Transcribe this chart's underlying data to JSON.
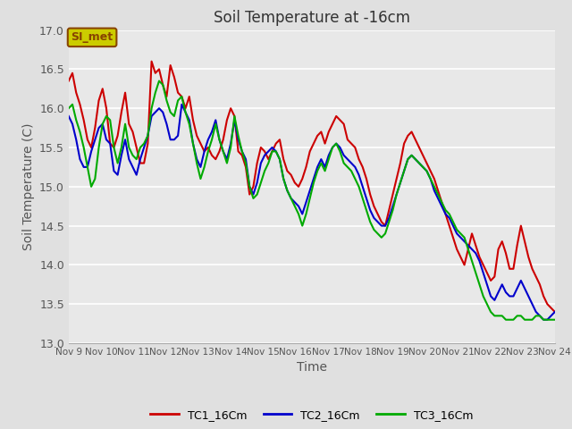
{
  "title": "Soil Temperature at -16cm",
  "xlabel": "Time",
  "ylabel": "Soil Temperature (C)",
  "ylim": [
    13.0,
    17.0
  ],
  "yticks": [
    13.0,
    13.5,
    14.0,
    14.5,
    15.0,
    15.5,
    16.0,
    16.5,
    17.0
  ],
  "xtick_labels": [
    "Nov 9",
    "Nov 10",
    "Nov 11",
    "Nov 12",
    "Nov 13",
    "Nov 14",
    "Nov 15",
    "Nov 16",
    "Nov 17",
    "Nov 18",
    "Nov 19",
    "Nov 20",
    "Nov 21",
    "Nov 22",
    "Nov 23",
    "Nov 24"
  ],
  "bg_color": "#e8e8e8",
  "fig_bg_color": "#e0e0e0",
  "grid_color": "#ffffff",
  "line_colors": [
    "#cc0000",
    "#0000cc",
    "#00aa00"
  ],
  "line_width": 1.5,
  "legend_labels": [
    "TC1_16Cm",
    "TC2_16Cm",
    "TC3_16Cm"
  ],
  "annotation_text": "SI_met",
  "annotation_bg": "#cccc00",
  "annotation_border": "#884400",
  "tc1": [
    16.35,
    16.45,
    16.2,
    16.05,
    15.85,
    15.6,
    15.5,
    15.75,
    16.1,
    16.25,
    16.0,
    15.55,
    15.5,
    15.65,
    15.95,
    16.2,
    15.8,
    15.7,
    15.5,
    15.3,
    15.3,
    15.55,
    16.6,
    16.45,
    16.5,
    16.3,
    16.15,
    16.55,
    16.4,
    16.2,
    16.15,
    16.0,
    16.15,
    15.85,
    15.65,
    15.55,
    15.45,
    15.5,
    15.4,
    15.35,
    15.45,
    15.6,
    15.85,
    16.0,
    15.9,
    15.45,
    15.4,
    15.25,
    14.9,
    15.0,
    15.3,
    15.5,
    15.45,
    15.35,
    15.45,
    15.55,
    15.6,
    15.35,
    15.2,
    15.15,
    15.05,
    15.0,
    15.1,
    15.25,
    15.45,
    15.55,
    15.65,
    15.7,
    15.55,
    15.7,
    15.8,
    15.9,
    15.85,
    15.8,
    15.6,
    15.55,
    15.5,
    15.35,
    15.25,
    15.1,
    14.9,
    14.75,
    14.65,
    14.55,
    14.5,
    14.7,
    14.9,
    15.1,
    15.3,
    15.55,
    15.65,
    15.7,
    15.6,
    15.5,
    15.4,
    15.3,
    15.2,
    15.1,
    14.95,
    14.8,
    14.65,
    14.5,
    14.35,
    14.2,
    14.1,
    14.0,
    14.2,
    14.4,
    14.25,
    14.1,
    14.0,
    13.9,
    13.8,
    13.85,
    14.2,
    14.3,
    14.15,
    13.95,
    13.95,
    14.25,
    14.5,
    14.3,
    14.1,
    13.95,
    13.85,
    13.75,
    13.6,
    13.5,
    13.45,
    13.4
  ],
  "tc2": [
    15.9,
    15.8,
    15.6,
    15.35,
    15.25,
    15.25,
    15.45,
    15.6,
    15.75,
    15.8,
    15.6,
    15.55,
    15.2,
    15.15,
    15.4,
    15.6,
    15.35,
    15.25,
    15.15,
    15.35,
    15.5,
    15.65,
    15.9,
    15.95,
    16.0,
    15.95,
    15.8,
    15.6,
    15.6,
    15.65,
    16.05,
    15.95,
    15.85,
    15.55,
    15.35,
    15.25,
    15.45,
    15.6,
    15.7,
    15.85,
    15.6,
    15.45,
    15.35,
    15.55,
    15.85,
    15.6,
    15.45,
    15.35,
    15.0,
    14.9,
    15.05,
    15.3,
    15.4,
    15.45,
    15.5,
    15.45,
    15.35,
    15.1,
    14.95,
    14.85,
    14.8,
    14.75,
    14.65,
    14.8,
    14.95,
    15.1,
    15.25,
    15.35,
    15.25,
    15.4,
    15.5,
    15.55,
    15.5,
    15.4,
    15.35,
    15.3,
    15.25,
    15.15,
    15.0,
    14.85,
    14.7,
    14.6,
    14.55,
    14.5,
    14.5,
    14.6,
    14.75,
    14.9,
    15.05,
    15.2,
    15.35,
    15.4,
    15.35,
    15.3,
    15.25,
    15.2,
    15.1,
    14.95,
    14.85,
    14.75,
    14.65,
    14.6,
    14.5,
    14.4,
    14.35,
    14.3,
    14.25,
    14.2,
    14.15,
    14.05,
    13.9,
    13.75,
    13.6,
    13.55,
    13.65,
    13.75,
    13.65,
    13.6,
    13.6,
    13.7,
    13.8,
    13.7,
    13.6,
    13.5,
    13.4,
    13.35,
    13.3,
    13.3,
    13.35,
    13.4
  ],
  "tc3": [
    16.0,
    16.05,
    15.85,
    15.7,
    15.5,
    15.25,
    15.0,
    15.1,
    15.5,
    15.8,
    15.9,
    15.85,
    15.5,
    15.3,
    15.5,
    15.8,
    15.5,
    15.4,
    15.35,
    15.5,
    15.55,
    15.65,
    16.0,
    16.2,
    16.35,
    16.3,
    16.1,
    15.95,
    15.9,
    16.1,
    16.15,
    15.95,
    15.8,
    15.55,
    15.3,
    15.1,
    15.25,
    15.45,
    15.6,
    15.8,
    15.6,
    15.45,
    15.3,
    15.5,
    15.9,
    15.65,
    15.45,
    15.3,
    15.0,
    14.85,
    14.9,
    15.05,
    15.2,
    15.3,
    15.45,
    15.45,
    15.35,
    15.1,
    14.95,
    14.85,
    14.75,
    14.65,
    14.5,
    14.65,
    14.85,
    15.05,
    15.2,
    15.3,
    15.2,
    15.35,
    15.5,
    15.55,
    15.45,
    15.3,
    15.25,
    15.2,
    15.1,
    15.0,
    14.85,
    14.7,
    14.55,
    14.45,
    14.4,
    14.35,
    14.4,
    14.55,
    14.7,
    14.9,
    15.05,
    15.2,
    15.35,
    15.4,
    15.35,
    15.3,
    15.25,
    15.2,
    15.1,
    15.0,
    14.9,
    14.8,
    14.7,
    14.65,
    14.55,
    14.45,
    14.4,
    14.35,
    14.2,
    14.05,
    13.9,
    13.75,
    13.6,
    13.5,
    13.4,
    13.35,
    13.35,
    13.35,
    13.3,
    13.3,
    13.3,
    13.35,
    13.35,
    13.3,
    13.3,
    13.3,
    13.35,
    13.35,
    13.3,
    13.3,
    13.3,
    13.3
  ]
}
